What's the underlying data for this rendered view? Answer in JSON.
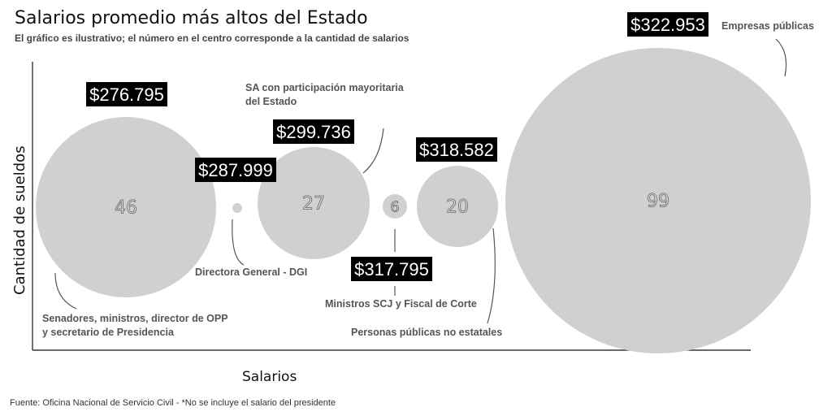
{
  "chart_data": {
    "type": "bubble",
    "title": "Salarios promedio más altos del Estado",
    "subtitle": "El gráfico es ilustrativo; el número en el centro corresponde a la cantidad de salarios",
    "xlabel": "Salarios",
    "ylabel": "Cantidad de sueldos",
    "footnote": "Fuente: Oficina Nacional de Servicio Civil - *No se incluye el salario del presidente",
    "colors": {
      "bubble": "#d0d0d0",
      "price_bg": "#000000",
      "price_text": "#ffffff",
      "label_text": "#555555",
      "leader": "#555555"
    },
    "bubbles": [
      {
        "category": "Senadores, ministros, director de OPP y secretario de Presidencia",
        "label_lines": [
          "Senadores, ministros, director de OPP",
          "y secretario de Presidencia"
        ],
        "count": 46,
        "salary": "$276.795"
      },
      {
        "category": "Directora General - DGI",
        "label_lines": [
          "Directora General - DGI"
        ],
        "count": 1,
        "salary": "$287.999"
      },
      {
        "category": "SA con participación mayoritaria del Estado",
        "label_lines": [
          "SA con participación mayoritaria",
          "del Estado"
        ],
        "count": 27,
        "salary": "$299.736"
      },
      {
        "category": "Ministros SCJ y Fiscal de Corte",
        "label_lines": [
          "Ministros SCJ y Fiscal de Corte"
        ],
        "count": 6,
        "salary": "$317.795"
      },
      {
        "category": "Personas públicas no estatales",
        "label_lines": [
          "Personas públicas no estatales"
        ],
        "count": 20,
        "salary": "$318.582"
      },
      {
        "category": "Empresas públicas",
        "label_lines": [
          "Empresas públicas"
        ],
        "count": 99,
        "salary": "$322.953"
      }
    ]
  }
}
